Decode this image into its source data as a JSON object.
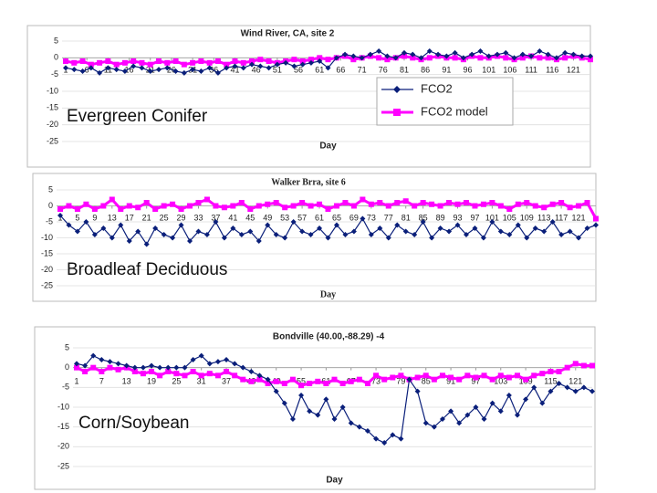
{
  "chart_data": [
    {
      "type": "line",
      "title": "Wind River, CA, site 2",
      "xlabel": "Day",
      "annotation": "Evergreen Conifer",
      "legend": true,
      "grid": true,
      "x": [
        1,
        3,
        5,
        7,
        9,
        11,
        13,
        15,
        17,
        19,
        21,
        23,
        25,
        27,
        29,
        31,
        33,
        35,
        37,
        39,
        41,
        43,
        45,
        47,
        49,
        51,
        53,
        55,
        57,
        59,
        61,
        63,
        65,
        67,
        69,
        71,
        73,
        75,
        77,
        79,
        81,
        83,
        85,
        87,
        89,
        91,
        93,
        95,
        97,
        99,
        101,
        103,
        105,
        107,
        109,
        111,
        113,
        115,
        117,
        119,
        121,
        123,
        125
      ],
      "xlim": [
        1,
        125
      ],
      "xticks": [
        1,
        6,
        11,
        16,
        21,
        26,
        31,
        36,
        41,
        46,
        51,
        56,
        61,
        66,
        71,
        76,
        81,
        86,
        91,
        96,
        101,
        106,
        111,
        116,
        121
      ],
      "ylim": [
        -25,
        5
      ],
      "yticks": [
        5,
        0,
        -5,
        -10,
        -15,
        -20,
        -25
      ],
      "series": [
        {
          "name": "FCO2",
          "color": "#0a1f7a",
          "values": [
            -3,
            -3.5,
            -4,
            -3,
            -4.5,
            -3,
            -3.5,
            -4,
            -2.5,
            -3,
            -4,
            -3.5,
            -3,
            -4,
            -4.5,
            -3.5,
            -4,
            -3,
            -4.5,
            -3,
            -2.5,
            -3,
            -2,
            -2.5,
            -3,
            -2,
            -1.5,
            -2.5,
            -2,
            -1.5,
            -1,
            -3,
            0,
            1,
            0.5,
            0,
            1,
            2,
            0.5,
            0,
            1.5,
            1,
            0,
            2,
            1,
            0.5,
            1.5,
            0,
            1,
            2,
            0.5,
            1,
            1.5,
            0,
            1,
            0.5,
            2,
            1,
            0,
            1.5,
            1,
            0.5,
            0.5
          ]
        },
        {
          "name": "FCO2 model",
          "color": "#ff00ff",
          "values": [
            -1,
            -1.5,
            -1,
            -2,
            -1.5,
            -1,
            -2,
            -1.5,
            -1,
            -1.5,
            -2,
            -1,
            -1.5,
            -1,
            -2,
            -1.5,
            -1,
            -1.5,
            -1,
            -2,
            -1,
            -1.5,
            -1,
            -0.5,
            -1,
            -1.5,
            -1,
            -0.5,
            -1,
            -0.5,
            0,
            -0.5,
            0,
            0.5,
            -0.5,
            0,
            0.5,
            0,
            -0.5,
            0,
            0.5,
            0,
            -0.5,
            0,
            0.5,
            0,
            0,
            -0.5,
            0.5,
            0,
            0,
            0.5,
            0,
            -0.5,
            0,
            0.5,
            0,
            0,
            -0.5,
            0,
            0.5,
            0,
            -0.5
          ]
        }
      ]
    },
    {
      "type": "line",
      "title": "Walker Brra, site 6",
      "xlabel": "Day",
      "annotation": "Broadleaf Deciduous",
      "legend": false,
      "grid": true,
      "x": [
        1,
        3,
        5,
        7,
        9,
        11,
        13,
        15,
        17,
        19,
        21,
        23,
        25,
        27,
        29,
        31,
        33,
        35,
        37,
        39,
        41,
        43,
        45,
        47,
        49,
        51,
        53,
        55,
        57,
        59,
        61,
        63,
        65,
        67,
        69,
        71,
        73,
        75,
        77,
        79,
        81,
        83,
        85,
        87,
        89,
        91,
        93,
        95,
        97,
        99,
        101,
        103,
        105,
        107,
        109,
        111,
        113,
        115,
        117,
        119,
        121,
        123,
        125
      ],
      "xlim": [
        1,
        125
      ],
      "xticks": [
        1,
        5,
        9,
        13,
        17,
        21,
        25,
        29,
        33,
        37,
        41,
        45,
        49,
        53,
        57,
        61,
        65,
        69,
        73,
        77,
        81,
        85,
        89,
        93,
        97,
        101,
        105,
        109,
        113,
        117,
        121
      ],
      "ylim": [
        -25,
        5
      ],
      "yticks": [
        5,
        0,
        -5,
        -10,
        -15,
        -20,
        -25
      ],
      "series": [
        {
          "color": "#0a1f7a",
          "values": [
            -3,
            -6,
            -8,
            -5,
            -9,
            -7,
            -10,
            -6,
            -11,
            -8,
            -12,
            -7,
            -9,
            -10,
            -6,
            -11,
            -8,
            -9,
            -5,
            -10,
            -7,
            -9,
            -8,
            -11,
            -6,
            -9,
            -10,
            -5,
            -8,
            -9,
            -7,
            -10,
            -6,
            -9,
            -8,
            -4,
            -9,
            -7,
            -10,
            -6,
            -8,
            -9,
            -5,
            -10,
            -7,
            -8,
            -6,
            -9,
            -7,
            -10,
            -5,
            -8,
            -9,
            -6,
            -10,
            -7,
            -8,
            -5,
            -9,
            -8,
            -10,
            -7,
            -6
          ]
        },
        {
          "color": "#ff00ff",
          "values": [
            -1,
            0,
            -1,
            0.5,
            -1,
            0,
            2,
            -1,
            0,
            -0.5,
            1,
            -1,
            0,
            0.5,
            -1,
            0,
            1,
            2,
            0,
            -0.5,
            0,
            1,
            -1,
            0,
            0.5,
            1,
            -0.5,
            0,
            1,
            0,
            0.5,
            -1,
            0,
            1,
            0,
            2,
            0.5,
            1,
            0,
            1,
            1.5,
            0,
            1,
            0.5,
            0,
            1,
            0.5,
            1,
            0,
            0.5,
            1,
            0,
            -1,
            0.5,
            1,
            0,
            -0.5,
            0.5,
            1,
            -0.5,
            0,
            1,
            -4
          ]
        }
      ]
    },
    {
      "type": "line",
      "title": "Bondville (40.00,-88.29) -4",
      "xlabel": "Day",
      "annotation": "Corn/Soybean",
      "legend": false,
      "grid": true,
      "x": [
        1,
        3,
        5,
        7,
        9,
        11,
        13,
        15,
        17,
        19,
        21,
        23,
        25,
        27,
        29,
        31,
        33,
        35,
        37,
        39,
        41,
        43,
        45,
        47,
        49,
        51,
        53,
        55,
        57,
        59,
        61,
        63,
        65,
        67,
        69,
        71,
        73,
        75,
        77,
        79,
        81,
        83,
        85,
        87,
        89,
        91,
        93,
        95,
        97,
        99,
        101,
        103,
        105,
        107,
        109,
        111,
        113,
        115,
        117,
        119,
        121,
        123,
        125
      ],
      "xlim": [
        1,
        125
      ],
      "xticks": [
        1,
        7,
        13,
        19,
        25,
        31,
        37,
        43,
        49,
        55,
        61,
        67,
        73,
        79,
        85,
        91,
        97,
        103,
        109,
        115,
        121
      ],
      "ylim": [
        -25,
        5
      ],
      "yticks": [
        5,
        0,
        -5,
        -10,
        -15,
        -20,
        -25
      ],
      "series": [
        {
          "color": "#0a1f7a",
          "values": [
            1,
            0.5,
            3,
            2,
            1.5,
            1,
            0.5,
            0,
            0,
            0.5,
            0,
            0,
            0,
            0,
            2,
            3,
            1,
            1.5,
            2,
            1,
            0,
            -1,
            -2,
            -3,
            -6,
            -9,
            -13,
            -7,
            -11,
            -12,
            -8,
            -13,
            -10,
            -14,
            -15,
            -16,
            -18,
            -19,
            -17,
            -18,
            -3,
            -6,
            -14,
            -15,
            -13,
            -11,
            -14,
            -12,
            -10,
            -13,
            -9,
            -11,
            -7,
            -12,
            -8,
            -5,
            -9,
            -6,
            -4,
            -5,
            -6,
            -5,
            -6
          ]
        },
        {
          "color": "#ff00ff",
          "values": [
            0,
            -1,
            0,
            -1,
            0,
            -0.5,
            0,
            -1,
            -1.5,
            -1,
            -2,
            -1,
            -1.5,
            -2,
            -1,
            -2,
            -1.5,
            -2,
            -1,
            -2,
            -3,
            -3.5,
            -3,
            -4,
            -3.5,
            -4,
            -3,
            -4.5,
            -4,
            -3.5,
            -4,
            -3,
            -4,
            -3.5,
            -3,
            -4,
            -2,
            -3,
            -2.5,
            -2,
            -3,
            -2.5,
            -2,
            -3,
            -2,
            -2.5,
            -3,
            -2,
            -2.5,
            -2,
            -3,
            -2,
            -2.5,
            -2,
            -3,
            -2,
            -1.5,
            -1,
            -1,
            0,
            1,
            0.5,
            0.5
          ]
        }
      ]
    }
  ]
}
